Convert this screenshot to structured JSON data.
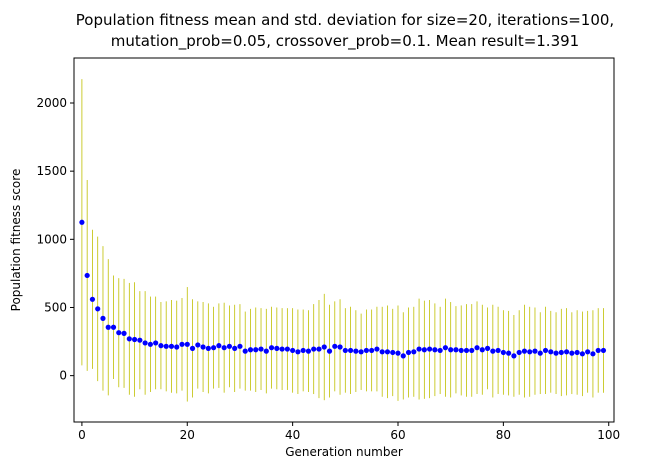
{
  "chart_data": {
    "type": "scatter",
    "title_lines": [
      "Population fitness mean and std. deviation for size=20, iterations=100,",
      "mutation_prob=0.05, crossover_prob=0.1. Mean result=1.391"
    ],
    "xlabel": "Generation number",
    "ylabel": "Population fitness score",
    "xlim": [
      -1.5,
      101
    ],
    "ylim": [
      -340,
      2330
    ],
    "xticks": [
      0,
      20,
      40,
      60,
      80,
      100
    ],
    "yticks": [
      0,
      500,
      1000,
      1500,
      2000
    ],
    "grid": false,
    "series": [
      {
        "x": [
          0,
          1,
          2,
          3,
          4,
          5,
          6,
          7,
          8,
          9,
          10,
          11,
          12,
          13,
          14,
          15,
          16,
          17,
          18,
          19,
          20,
          21,
          22,
          23,
          24,
          25,
          26,
          27,
          28,
          29,
          30,
          31,
          32,
          33,
          34,
          35,
          36,
          37,
          38,
          39,
          40,
          41,
          42,
          43,
          44,
          45,
          46,
          47,
          48,
          49,
          50,
          51,
          52,
          53,
          54,
          55,
          56,
          57,
          58,
          59,
          60,
          61,
          62,
          63,
          64,
          65,
          66,
          67,
          68,
          69,
          70,
          71,
          72,
          73,
          74,
          75,
          76,
          77,
          78,
          79,
          80,
          81,
          82,
          83,
          84,
          85,
          86,
          87,
          88,
          89,
          90,
          91,
          92,
          93,
          94,
          95,
          96,
          97,
          98,
          99
        ],
        "mean": [
          1125,
          735,
          560,
          490,
          420,
          355,
          355,
          315,
          310,
          270,
          265,
          260,
          240,
          230,
          240,
          220,
          215,
          215,
          210,
          230,
          230,
          200,
          225,
          210,
          200,
          205,
          220,
          205,
          215,
          200,
          215,
          180,
          190,
          190,
          195,
          180,
          205,
          200,
          195,
          195,
          185,
          175,
          185,
          180,
          195,
          195,
          210,
          180,
          215,
          210,
          185,
          185,
          180,
          175,
          185,
          185,
          195,
          175,
          175,
          170,
          165,
          145,
          170,
          175,
          195,
          190,
          195,
          190,
          185,
          205,
          190,
          190,
          185,
          185,
          185,
          205,
          190,
          200,
          180,
          185,
          170,
          165,
          145,
          170,
          180,
          175,
          180,
          165,
          185,
          175,
          165,
          170,
          175,
          165,
          170,
          160,
          175,
          160,
          185,
          185
        ],
        "std": [
          1050,
          700,
          510,
          530,
          530,
          500,
          380,
          400,
          400,
          410,
          420,
          360,
          380,
          350,
          340,
          320,
          330,
          340,
          340,
          340,
          420,
          360,
          320,
          330,
          330,
          300,
          310,
          330,
          300,
          320,
          310,
          290,
          300,
          310,
          300,
          310,
          300,
          300,
          300,
          300,
          310,
          310,
          300,
          300,
          330,
          360,
          390,
          340,
          330,
          350,
          310,
          320,
          300,
          280,
          300,
          300,
          310,
          330,
          340,
          320,
          350,
          320,
          330,
          330,
          370,
          360,
          360,
          340,
          320,
          360,
          350,
          320,
          330,
          340,
          340,
          340,
          330,
          300,
          340,
          320,
          310,
          310,
          300,
          310,
          340,
          330,
          320,
          300,
          320,
          300,
          300,
          320,
          320,
          300,
          310,
          310,
          300,
          320,
          310,
          310
        ],
        "color": "#0000ff",
        "error_color": "#bfbf00"
      }
    ]
  }
}
